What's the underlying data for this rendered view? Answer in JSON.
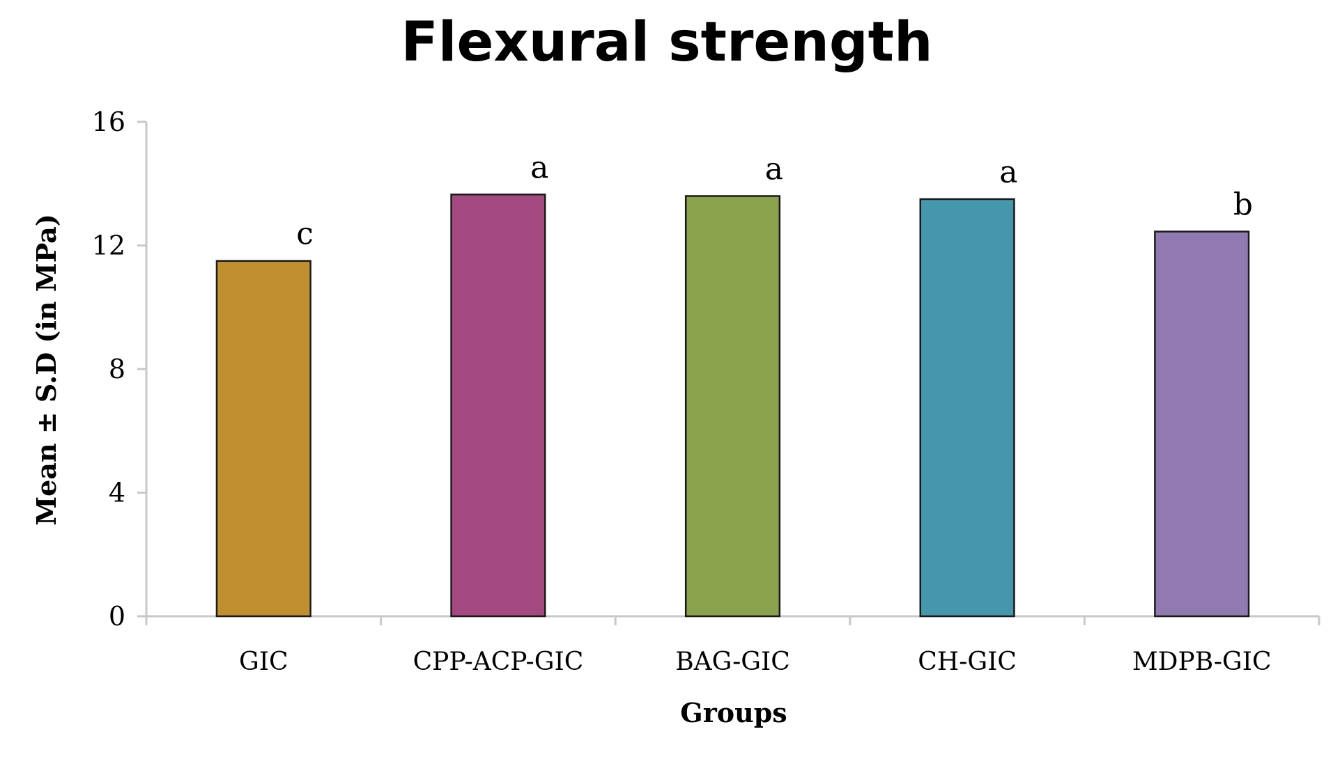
{
  "chart_data": {
    "type": "bar",
    "title": "Flexural strength",
    "xlabel": "Groups",
    "ylabel": "Mean ± S.D (in MPa)",
    "ylim": [
      0,
      16
    ],
    "yticks": [
      "0",
      "4",
      "8",
      "12",
      "16"
    ],
    "grid": false,
    "legend": false,
    "categories": [
      "GIC",
      "CPP-ACP-GIC",
      "BAG-GIC",
      "CH-GIC",
      "MDPB-GIC"
    ],
    "values": [
      11.5,
      13.65,
      13.6,
      13.5,
      12.45
    ],
    "annotations": [
      "c",
      "a",
      "a",
      "a",
      "b"
    ],
    "colors": [
      "#bf8f30",
      "#a54a80",
      "#8ba24c",
      "#4497ad",
      "#917ab2"
    ]
  }
}
